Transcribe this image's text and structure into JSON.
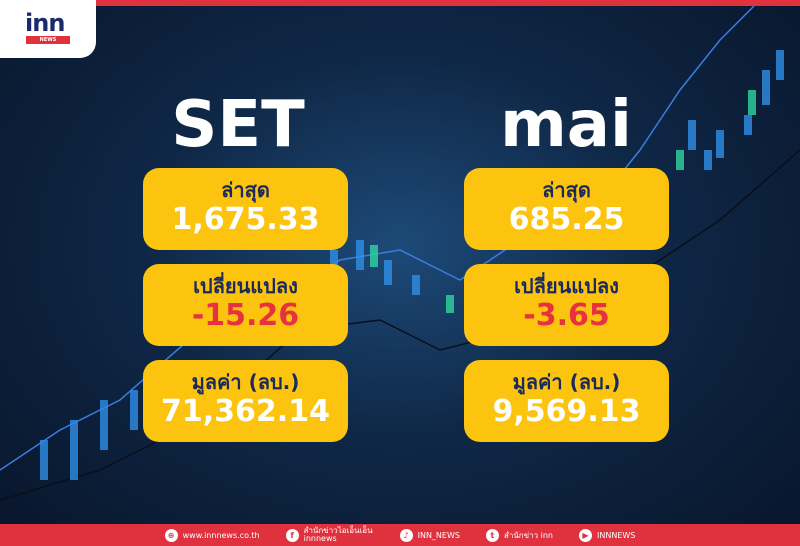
{
  "logo": {
    "text": "inn",
    "subtext": "NEWS"
  },
  "set": {
    "title": "SET",
    "latest_label": "ล่าสุด",
    "latest": "1,675.33",
    "change_label": "เปลี่ยนแปลง",
    "change": "-15.26",
    "value_label": "มูลค่า (ลบ.)",
    "value": "71,362.14"
  },
  "mai": {
    "title": "mai",
    "latest_label": "ล่าสุด",
    "latest": "685.25",
    "change_label": "เปลี่ยนแปลง",
    "change": "-3.65",
    "value_label": "มูลค่า (ลบ.)",
    "value": "9,569.13"
  },
  "footer": {
    "website": "www.innnews.co.th",
    "facebook": "สำนักข่าวไอเอ็นเอ็น innnews",
    "tiktok": "INN_NEWS",
    "twitter": "สำนักข่าว inn",
    "youtube": "INNNEWS"
  },
  "colors": {
    "red": "#e0313f",
    "yellow": "#fcc30f",
    "navy": "#1b2a5c"
  }
}
